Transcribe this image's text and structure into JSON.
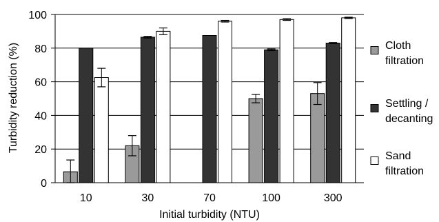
{
  "chart_data": {
    "type": "bar",
    "title": "",
    "xlabel": "Initial turbidity (NTU)",
    "ylabel": "Turbidity reduction (%)",
    "ylim": [
      0,
      100
    ],
    "yticks": [
      0,
      20,
      40,
      60,
      80,
      100
    ],
    "grid": true,
    "legend_position": "right",
    "categories": [
      "10",
      "30",
      "70",
      "100",
      "300"
    ],
    "series": [
      {
        "name_lines": [
          "Cloth",
          "filtration"
        ],
        "color": "#9a9a9a",
        "values": [
          6.5,
          22,
          null,
          50,
          53
        ],
        "errors": [
          7,
          6,
          null,
          2.5,
          6.5
        ]
      },
      {
        "name_lines": [
          "Settling /",
          "decanting"
        ],
        "color": "#333333",
        "values": [
          80,
          86.5,
          87.5,
          79,
          83
        ],
        "errors": [
          null,
          0.5,
          null,
          0.5,
          0.3
        ]
      },
      {
        "name_lines": [
          "Sand",
          "filtration"
        ],
        "color": "#ffffff",
        "values": [
          62.5,
          90,
          96,
          97,
          98
        ],
        "errors": [
          5.5,
          2,
          0.5,
          0.5,
          0.4
        ]
      }
    ]
  }
}
